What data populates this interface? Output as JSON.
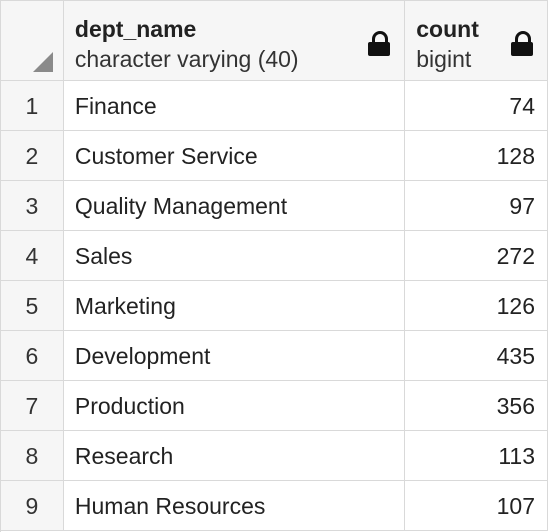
{
  "columns": {
    "dept_name": {
      "name": "dept_name",
      "type": "character varying (40)"
    },
    "count": {
      "name": "count",
      "type": "bigint"
    }
  },
  "rows": [
    {
      "index": "1",
      "dept_name": "Finance",
      "count": "74"
    },
    {
      "index": "2",
      "dept_name": "Customer Service",
      "count": "128"
    },
    {
      "index": "3",
      "dept_name": "Quality Management",
      "count": "97"
    },
    {
      "index": "4",
      "dept_name": "Sales",
      "count": "272"
    },
    {
      "index": "5",
      "dept_name": "Marketing",
      "count": "126"
    },
    {
      "index": "6",
      "dept_name": "Development",
      "count": "435"
    },
    {
      "index": "7",
      "dept_name": "Production",
      "count": "356"
    },
    {
      "index": "8",
      "dept_name": "Research",
      "count": "113"
    },
    {
      "index": "9",
      "dept_name": "Human Resources",
      "count": "107"
    }
  ],
  "icons": {
    "corner": "select-all-corner-icon",
    "lock": "lock-icon"
  }
}
